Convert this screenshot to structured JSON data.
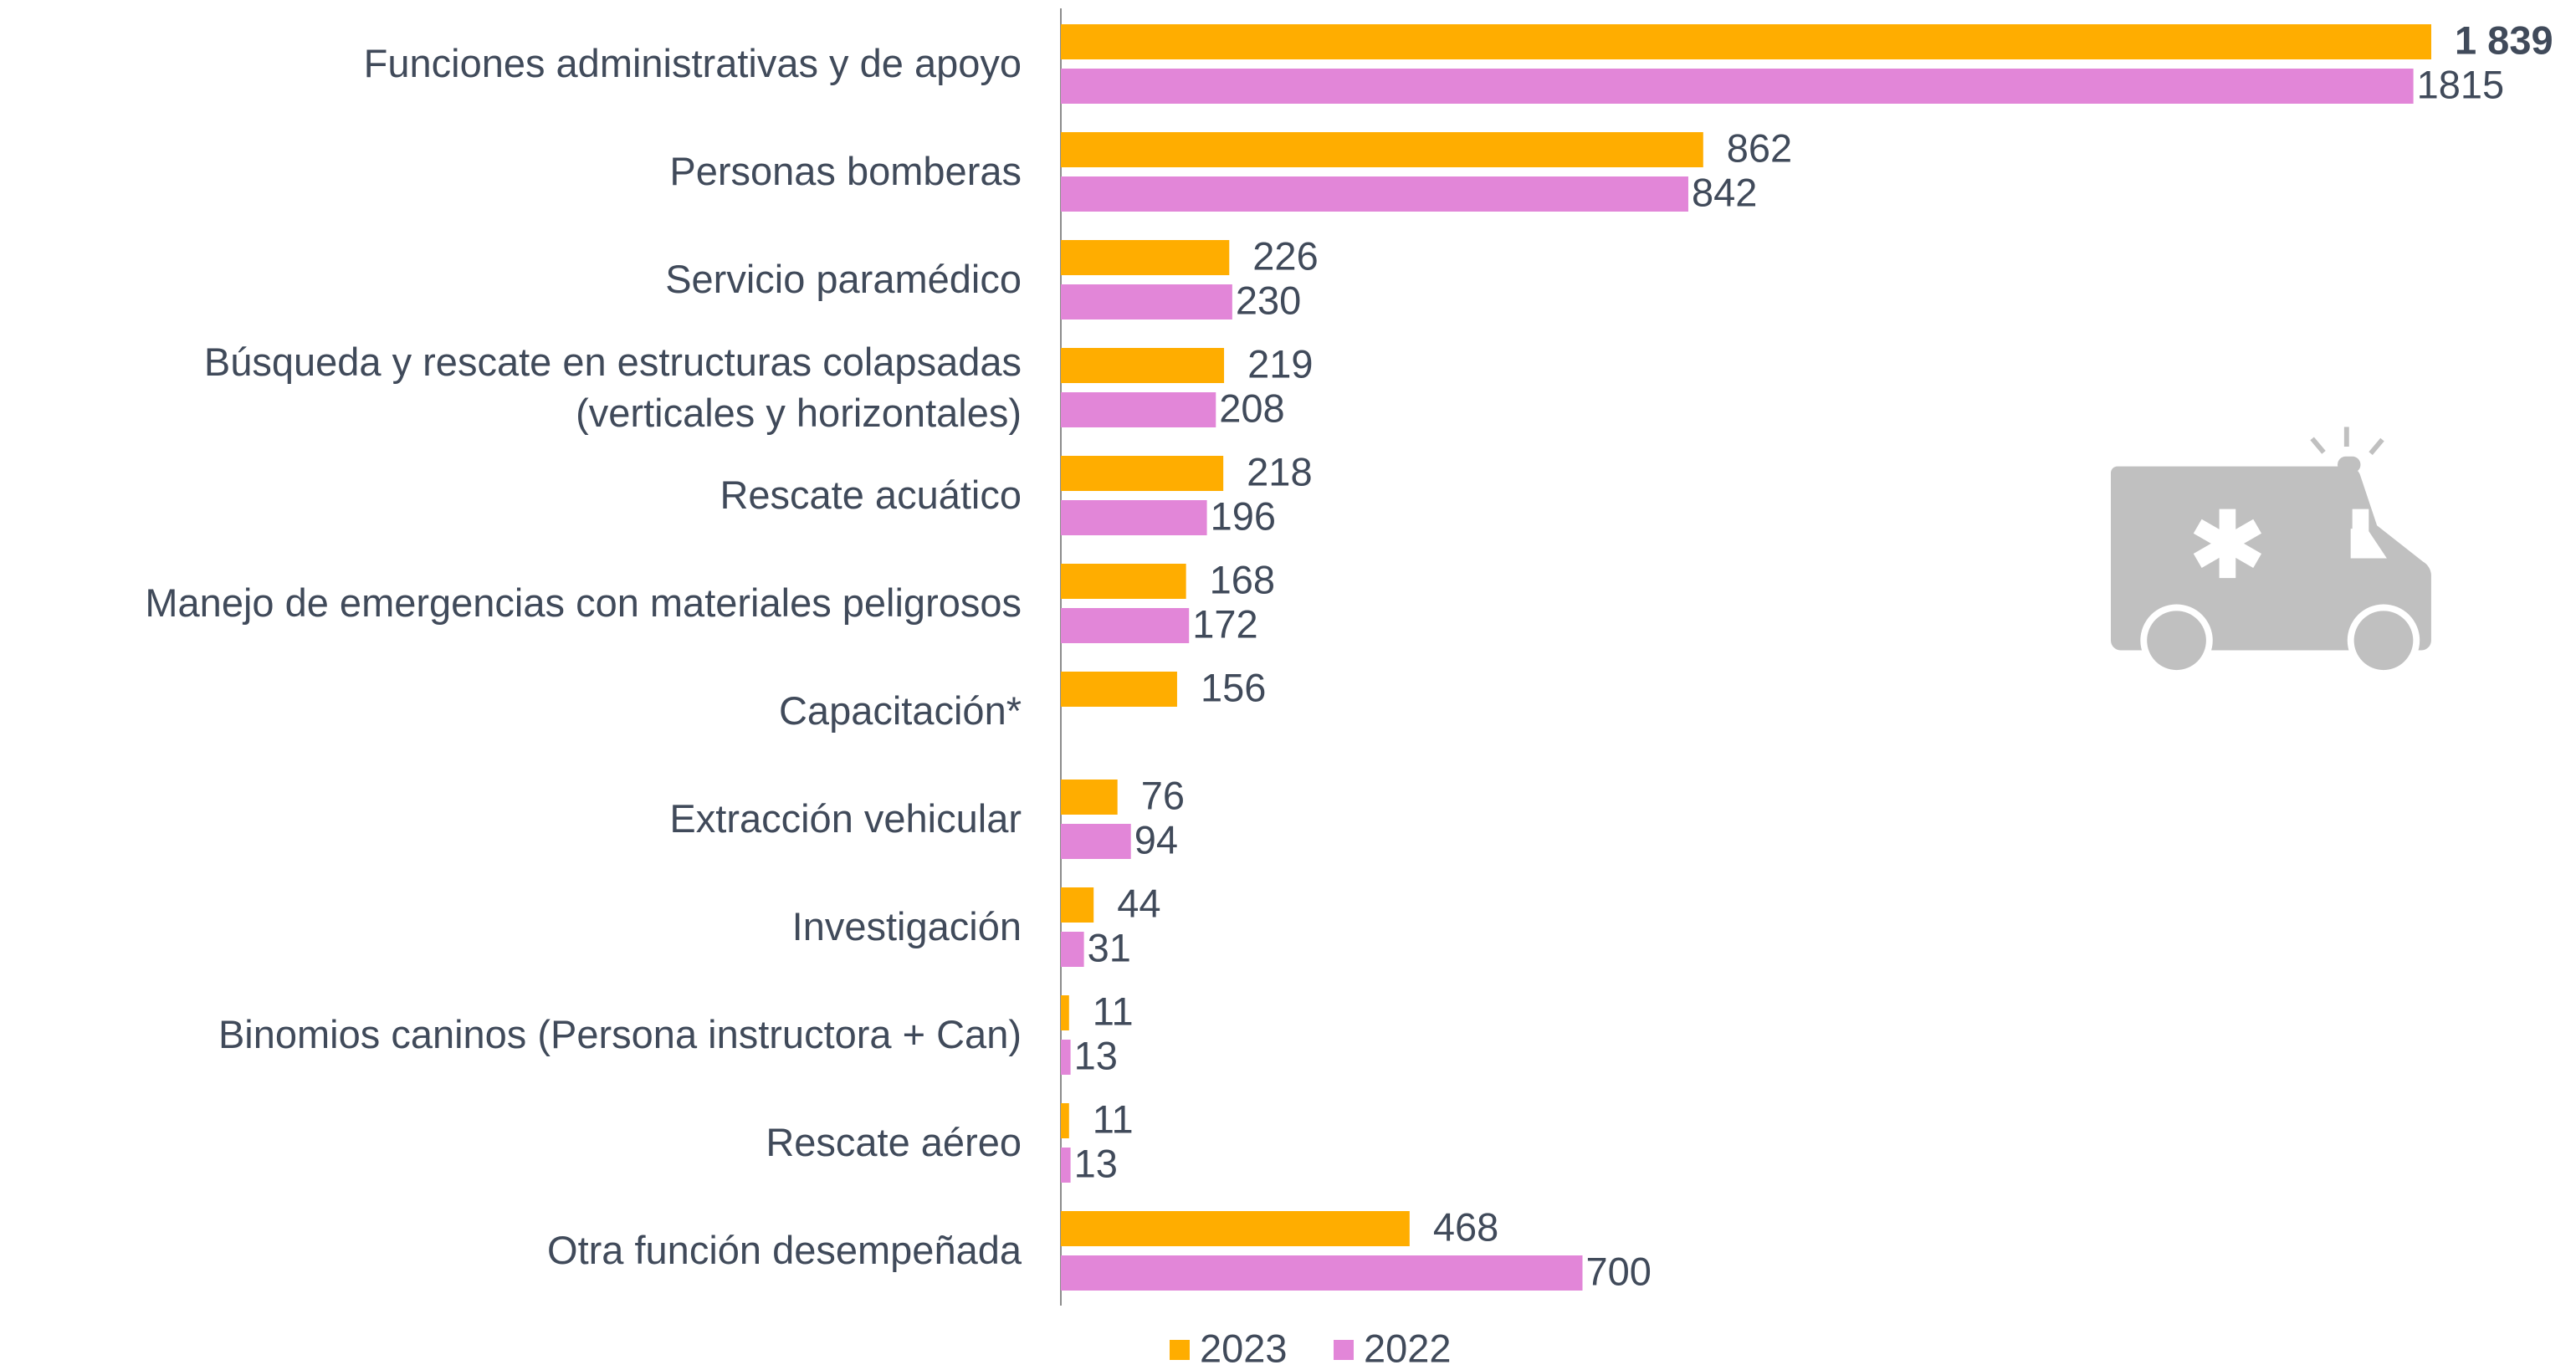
{
  "chart_data": {
    "type": "bar",
    "orientation": "horizontal",
    "categories": [
      "Funciones administrativas y de apoyo",
      "Personas bomberas",
      "Servicio paramédico",
      "Búsqueda y rescate en estructuras colapsadas\n(verticales y horizontales)",
      "Rescate acuático",
      "Manejo de emergencias con materiales peligrosos",
      "Capacitación*",
      "Extracción vehicular",
      "Investigación",
      "Binomios caninos (Persona instructora + Can)",
      "Rescate aéreo",
      "Otra función desempeñada"
    ],
    "series": [
      {
        "name": "2023",
        "color": "#ffad00",
        "values": [
          1839,
          862,
          226,
          219,
          218,
          168,
          156,
          76,
          44,
          11,
          11,
          468
        ],
        "value_labels": [
          "1 839",
          "862",
          "226",
          "219",
          "218",
          "168",
          "156",
          "76",
          "44",
          "11",
          "11",
          "468"
        ]
      },
      {
        "name": "2022",
        "color": "#e286d8",
        "values": [
          1815,
          842,
          230,
          208,
          196,
          172,
          null,
          94,
          31,
          13,
          13,
          700
        ]
      }
    ],
    "legend": "bottom"
  }
}
